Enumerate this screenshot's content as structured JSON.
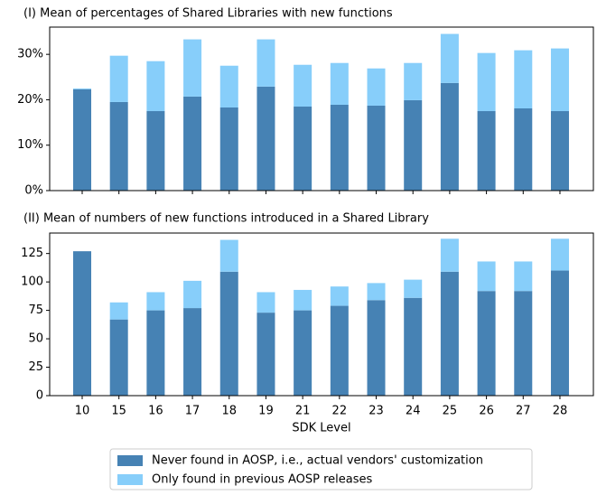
{
  "chart_data": [
    {
      "type": "bar",
      "stacked": true,
      "title": "(I) Mean of percentages of Shared Libraries with new functions",
      "ylim": [
        0,
        36
      ],
      "yticks": [
        {
          "value": 0,
          "label": "0%"
        },
        {
          "value": 10,
          "label": "10%"
        },
        {
          "value": 20,
          "label": "20%"
        },
        {
          "value": 30,
          "label": "30%"
        }
      ],
      "series": [
        {
          "name": "Never found in AOSP, i.e., actual vendors' customization",
          "color": "#4682b4",
          "values": [
            22.3,
            19.5,
            17.5,
            20.7,
            18.3,
            22.9,
            18.5,
            18.9,
            18.7,
            19.9,
            23.7,
            17.5,
            18.1,
            17.5
          ]
        },
        {
          "name": "Only found in previous AOSP releases",
          "color": "#87cefa",
          "values": [
            0.2,
            10.2,
            11.0,
            12.6,
            9.2,
            10.4,
            9.2,
            9.2,
            8.2,
            8.2,
            10.8,
            12.8,
            12.8,
            13.8
          ]
        }
      ]
    },
    {
      "type": "bar",
      "stacked": true,
      "title": "(II) Mean of numbers of new functions introduced in a Shared Library",
      "xlabel": "SDK Level",
      "categories": [
        "10",
        "15",
        "16",
        "17",
        "18",
        "19",
        "21",
        "22",
        "23",
        "24",
        "25",
        "26",
        "27",
        "28"
      ],
      "ylim": [
        0,
        143
      ],
      "yticks": [
        0,
        25,
        50,
        75,
        100,
        125
      ],
      "series": [
        {
          "color": "#4682b4",
          "values": [
            127,
            67,
            75,
            77,
            109,
            73,
            75,
            79,
            84,
            86,
            109,
            92,
            92,
            110
          ]
        },
        {
          "color": "#87cefa",
          "values": [
            0,
            15,
            16,
            24,
            28,
            18,
            18,
            17,
            15,
            16,
            29,
            26,
            26,
            28
          ]
        }
      ]
    }
  ]
}
